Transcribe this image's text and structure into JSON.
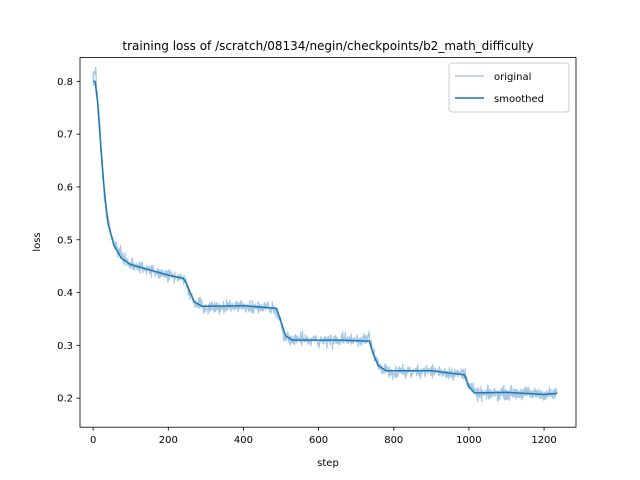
{
  "chart_data": {
    "type": "line",
    "title": "training loss of /scratch/08134/negin/checkpoints/b2_math_difficulty",
    "xlabel": "step",
    "ylabel": "loss",
    "xlim": [
      -35,
      1285
    ],
    "ylim": [
      0.145,
      0.845
    ],
    "xticks": [
      0,
      200,
      400,
      600,
      800,
      1000,
      1200
    ],
    "yticks": [
      0.2,
      0.3,
      0.4,
      0.5,
      0.6,
      0.7,
      0.8
    ],
    "grid": false,
    "legend_placement": "top-right",
    "colors": {
      "original": "#a6c8e3",
      "smoothed": "#1f77b4"
    },
    "x_range": [
      0,
      1235
    ],
    "series": [
      {
        "name": "original",
        "style": "noisy",
        "anchor_points": [
          [
            0,
            0.8
          ],
          [
            5,
            0.82
          ],
          [
            15,
            0.75
          ],
          [
            25,
            0.62
          ],
          [
            35,
            0.55
          ],
          [
            50,
            0.5
          ],
          [
            70,
            0.475
          ],
          [
            100,
            0.452
          ],
          [
            150,
            0.442
          ],
          [
            200,
            0.432
          ],
          [
            245,
            0.425
          ],
          [
            255,
            0.4
          ],
          [
            270,
            0.38
          ],
          [
            300,
            0.372
          ],
          [
            400,
            0.374
          ],
          [
            480,
            0.372
          ],
          [
            495,
            0.35
          ],
          [
            510,
            0.318
          ],
          [
            540,
            0.31
          ],
          [
            650,
            0.309
          ],
          [
            735,
            0.312
          ],
          [
            745,
            0.285
          ],
          [
            760,
            0.26
          ],
          [
            800,
            0.25
          ],
          [
            900,
            0.252
          ],
          [
            990,
            0.245
          ],
          [
            1000,
            0.225
          ],
          [
            1020,
            0.207
          ],
          [
            1100,
            0.21
          ],
          [
            1200,
            0.208
          ],
          [
            1235,
            0.208
          ]
        ]
      },
      {
        "name": "smoothed",
        "style": "smooth",
        "anchor_points": [
          [
            0,
            0.8
          ],
          [
            5,
            0.8
          ],
          [
            12,
            0.76
          ],
          [
            20,
            0.68
          ],
          [
            30,
            0.59
          ],
          [
            40,
            0.53
          ],
          [
            55,
            0.49
          ],
          [
            75,
            0.465
          ],
          [
            100,
            0.453
          ],
          [
            150,
            0.443
          ],
          [
            200,
            0.433
          ],
          [
            240,
            0.427
          ],
          [
            248,
            0.418
          ],
          [
            258,
            0.4
          ],
          [
            270,
            0.382
          ],
          [
            290,
            0.374
          ],
          [
            400,
            0.375
          ],
          [
            488,
            0.37
          ],
          [
            500,
            0.345
          ],
          [
            512,
            0.318
          ],
          [
            530,
            0.31
          ],
          [
            650,
            0.31
          ],
          [
            735,
            0.308
          ],
          [
            745,
            0.285
          ],
          [
            758,
            0.262
          ],
          [
            780,
            0.252
          ],
          [
            900,
            0.252
          ],
          [
            988,
            0.244
          ],
          [
            1000,
            0.222
          ],
          [
            1015,
            0.21
          ],
          [
            1100,
            0.211
          ],
          [
            1200,
            0.207
          ],
          [
            1235,
            0.209
          ]
        ]
      }
    ]
  }
}
